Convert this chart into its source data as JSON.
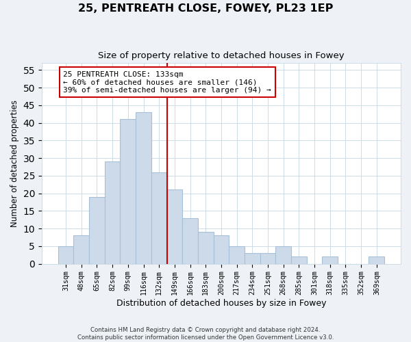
{
  "title": "25, PENTREATH CLOSE, FOWEY, PL23 1EP",
  "subtitle": "Size of property relative to detached houses in Fowey",
  "xlabel": "Distribution of detached houses by size in Fowey",
  "ylabel": "Number of detached properties",
  "bar_labels": [
    "31sqm",
    "48sqm",
    "65sqm",
    "82sqm",
    "99sqm",
    "116sqm",
    "132sqm",
    "149sqm",
    "166sqm",
    "183sqm",
    "200sqm",
    "217sqm",
    "234sqm",
    "251sqm",
    "268sqm",
    "285sqm",
    "301sqm",
    "318sqm",
    "335sqm",
    "352sqm",
    "369sqm"
  ],
  "bar_values": [
    5,
    8,
    19,
    29,
    41,
    43,
    26,
    21,
    13,
    9,
    8,
    5,
    3,
    3,
    5,
    2,
    0,
    2,
    0,
    0,
    2
  ],
  "bar_color": "#cddaea",
  "bar_edge_color": "#a8c0d6",
  "vline_x_idx": 6.5,
  "vline_color": "#cc0000",
  "annotation_line1": "25 PENTREATH CLOSE: 133sqm",
  "annotation_line2": "← 60% of detached houses are smaller (146)",
  "annotation_line3": "39% of semi-detached houses are larger (94) →",
  "annotation_box_color": "#ffffff",
  "annotation_box_edge": "#cc0000",
  "ylim": [
    0,
    57
  ],
  "yticks": [
    0,
    5,
    10,
    15,
    20,
    25,
    30,
    35,
    40,
    45,
    50,
    55
  ],
  "footer1": "Contains HM Land Registry data © Crown copyright and database right 2024.",
  "footer2": "Contains public sector information licensed under the Open Government Licence v3.0.",
  "bg_color": "#eef2f7",
  "plot_bg_color": "#ffffff",
  "grid_color": "#ccdde8"
}
